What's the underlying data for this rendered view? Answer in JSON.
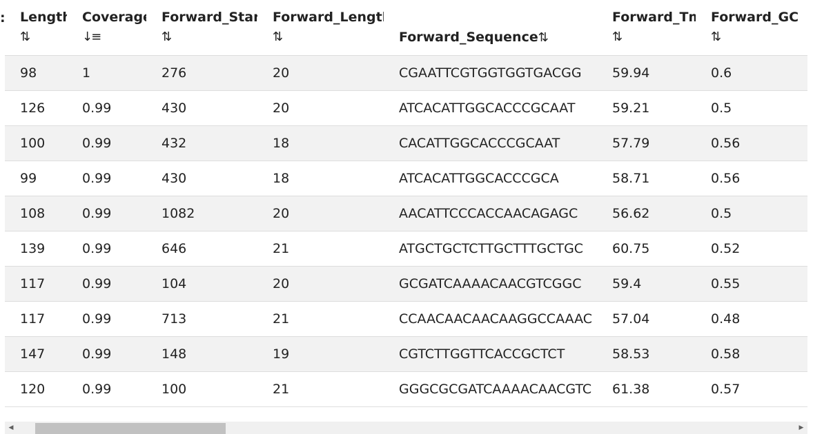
{
  "table": {
    "columns": [
      {
        "label": "Length",
        "sort_icon": "⇅",
        "sort_state": "unsorted"
      },
      {
        "label": "Coverage",
        "sort_icon": "↓≡",
        "sort_state": "descending"
      },
      {
        "label": "Forward_Start",
        "sort_icon": "⇅",
        "sort_state": "unsorted"
      },
      {
        "label": "Forward_Length",
        "sort_icon": "⇅",
        "sort_state": "unsorted"
      },
      {
        "label": "Forward_Sequence",
        "sort_icon": "⇅",
        "sort_state": "unsorted"
      },
      {
        "label": "Forward_Tm",
        "sort_icon": "⇅",
        "sort_state": "unsorted"
      },
      {
        "label": "Forward_GC",
        "sort_icon": "⇅",
        "sort_state": "unsorted"
      }
    ],
    "rows": [
      [
        "98",
        "1",
        "276",
        "20",
        "CGAATTCGTGGTGGTGACGG",
        "59.94",
        "0.6"
      ],
      [
        "126",
        "0.99",
        "430",
        "20",
        "ATCACATTGGCACCCGCAAT",
        "59.21",
        "0.5"
      ],
      [
        "100",
        "0.99",
        "432",
        "18",
        "CACATTGGCACCCGCAAT",
        "57.79",
        "0.56"
      ],
      [
        "99",
        "0.99",
        "430",
        "18",
        "ATCACATTGGCACCCGCA",
        "58.71",
        "0.56"
      ],
      [
        "108",
        "0.99",
        "1082",
        "20",
        "AACATTCCCACCAACAGAGC",
        "56.62",
        "0.5"
      ],
      [
        "139",
        "0.99",
        "646",
        "21",
        "ATGCTGCTCTTGCTTTGCTGC",
        "60.75",
        "0.52"
      ],
      [
        "117",
        "0.99",
        "104",
        "20",
        "GCGATCAAAACAACGTCGGC",
        "59.4",
        "0.55"
      ],
      [
        "117",
        "0.99",
        "713",
        "21",
        "CCAACAACAACAAGGCCAAAC",
        "57.04",
        "0.48"
      ],
      [
        "147",
        "0.99",
        "148",
        "19",
        "CGTCTTGGTTCACCGCTCT",
        "58.53",
        "0.58"
      ],
      [
        "120",
        "0.99",
        "100",
        "21",
        "GGGCGCGATCAAAACAACGTC",
        "61.38",
        "0.57"
      ]
    ]
  },
  "scrollbar": {
    "left_arrow": "◀",
    "right_arrow": "▶"
  },
  "colors": {
    "row_stripe": "#f2f2f2",
    "scroll_track": "#f0f0f0",
    "scroll_thumb": "#c1c1c1"
  }
}
